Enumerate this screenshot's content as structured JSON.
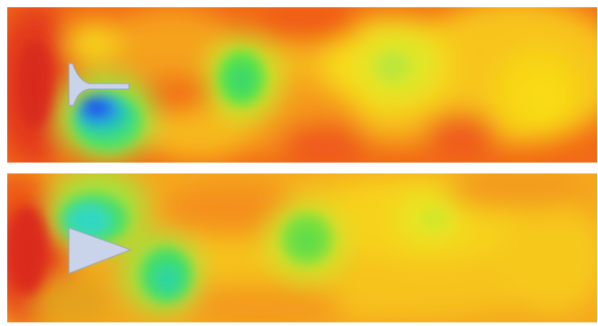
{
  "figure": {
    "panels": [
      {
        "id": "top",
        "obstacle": "flat-plate-with-tail"
      },
      {
        "id": "bottom",
        "obstacle": "triangular-wedge"
      }
    ]
  },
  "colors": {
    "background": "#ffffff",
    "contour_red": "#e8341c",
    "contour_orange": "#f27518",
    "contour_yellow": "#f6d21a",
    "contour_green": "#58e24a",
    "contour_blue": "#1a66e8",
    "obstacle_fill": "#c9d3ea"
  }
}
